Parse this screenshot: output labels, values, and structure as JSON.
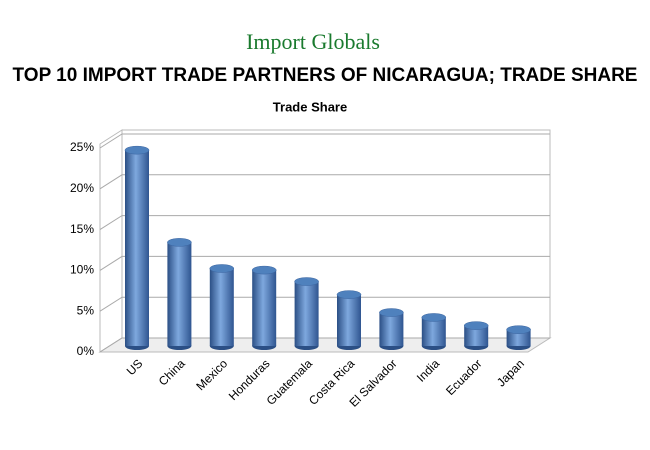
{
  "chart_data": {
    "type": "bar3d",
    "logo": "Import Globals",
    "title": "TOP 10 IMPORT TRADE PARTNERS OF NICARAGUA; TRADE SHARE",
    "subtitle": "Trade Share",
    "categories": [
      "US",
      "China",
      "Mexico",
      "Honduras",
      "Guatemala",
      "Costa Rica",
      "El Salvador",
      "India",
      "Ecuador",
      "Japan"
    ],
    "values": [
      24,
      12.7,
      9.5,
      9.3,
      7.9,
      6.3,
      4.1,
      3.5,
      2.5,
      2.0
    ],
    "color": "#4f81bd",
    "ylim": [
      0,
      25
    ],
    "yticks": [
      {
        "value": 0,
        "label": "0%"
      },
      {
        "value": 5,
        "label": "5%"
      },
      {
        "value": 10,
        "label": "10%"
      },
      {
        "value": 15,
        "label": "15%"
      },
      {
        "value": 20,
        "label": "20%"
      },
      {
        "value": 25,
        "label": "25%"
      }
    ],
    "grid": true
  }
}
